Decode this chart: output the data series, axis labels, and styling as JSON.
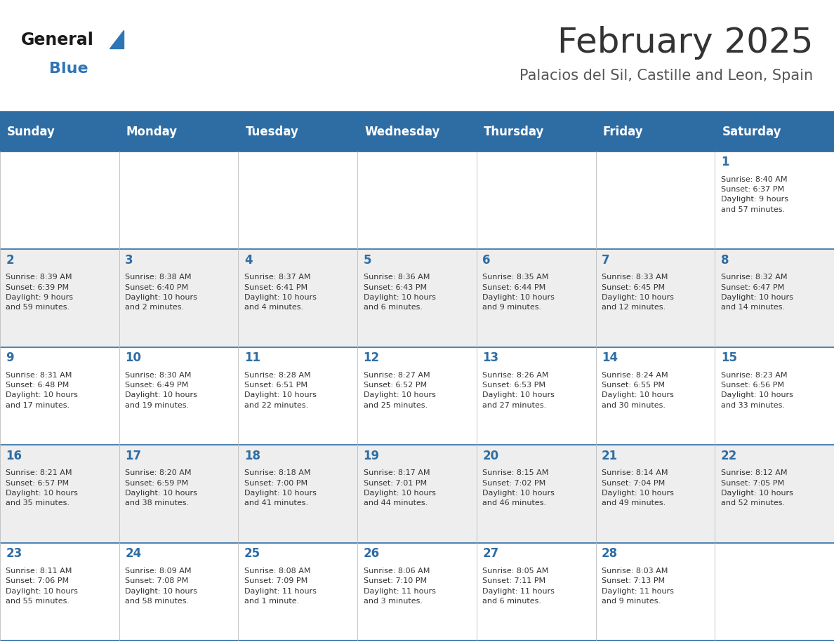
{
  "title": "February 2025",
  "subtitle": "Palacios del Sil, Castille and Leon, Spain",
  "header_color": "#2E6DA4",
  "header_text_color": "#FFFFFF",
  "bg_color": "#FFFFFF",
  "cell_bg_even": "#EEEEEE",
  "cell_bg_odd": "#FFFFFF",
  "day_headers": [
    "Sunday",
    "Monday",
    "Tuesday",
    "Wednesday",
    "Thursday",
    "Friday",
    "Saturday"
  ],
  "title_color": "#333333",
  "subtitle_color": "#555555",
  "day_number_color": "#2E6DA4",
  "info_color": "#333333",
  "logo_general_color": "#1a1a1a",
  "logo_blue_color": "#2E75B6",
  "weeks": [
    [
      {
        "day": "",
        "info": ""
      },
      {
        "day": "",
        "info": ""
      },
      {
        "day": "",
        "info": ""
      },
      {
        "day": "",
        "info": ""
      },
      {
        "day": "",
        "info": ""
      },
      {
        "day": "",
        "info": ""
      },
      {
        "day": "1",
        "info": "Sunrise: 8:40 AM\nSunset: 6:37 PM\nDaylight: 9 hours\nand 57 minutes."
      }
    ],
    [
      {
        "day": "2",
        "info": "Sunrise: 8:39 AM\nSunset: 6:39 PM\nDaylight: 9 hours\nand 59 minutes."
      },
      {
        "day": "3",
        "info": "Sunrise: 8:38 AM\nSunset: 6:40 PM\nDaylight: 10 hours\nand 2 minutes."
      },
      {
        "day": "4",
        "info": "Sunrise: 8:37 AM\nSunset: 6:41 PM\nDaylight: 10 hours\nand 4 minutes."
      },
      {
        "day": "5",
        "info": "Sunrise: 8:36 AM\nSunset: 6:43 PM\nDaylight: 10 hours\nand 6 minutes."
      },
      {
        "day": "6",
        "info": "Sunrise: 8:35 AM\nSunset: 6:44 PM\nDaylight: 10 hours\nand 9 minutes."
      },
      {
        "day": "7",
        "info": "Sunrise: 8:33 AM\nSunset: 6:45 PM\nDaylight: 10 hours\nand 12 minutes."
      },
      {
        "day": "8",
        "info": "Sunrise: 8:32 AM\nSunset: 6:47 PM\nDaylight: 10 hours\nand 14 minutes."
      }
    ],
    [
      {
        "day": "9",
        "info": "Sunrise: 8:31 AM\nSunset: 6:48 PM\nDaylight: 10 hours\nand 17 minutes."
      },
      {
        "day": "10",
        "info": "Sunrise: 8:30 AM\nSunset: 6:49 PM\nDaylight: 10 hours\nand 19 minutes."
      },
      {
        "day": "11",
        "info": "Sunrise: 8:28 AM\nSunset: 6:51 PM\nDaylight: 10 hours\nand 22 minutes."
      },
      {
        "day": "12",
        "info": "Sunrise: 8:27 AM\nSunset: 6:52 PM\nDaylight: 10 hours\nand 25 minutes."
      },
      {
        "day": "13",
        "info": "Sunrise: 8:26 AM\nSunset: 6:53 PM\nDaylight: 10 hours\nand 27 minutes."
      },
      {
        "day": "14",
        "info": "Sunrise: 8:24 AM\nSunset: 6:55 PM\nDaylight: 10 hours\nand 30 minutes."
      },
      {
        "day": "15",
        "info": "Sunrise: 8:23 AM\nSunset: 6:56 PM\nDaylight: 10 hours\nand 33 minutes."
      }
    ],
    [
      {
        "day": "16",
        "info": "Sunrise: 8:21 AM\nSunset: 6:57 PM\nDaylight: 10 hours\nand 35 minutes."
      },
      {
        "day": "17",
        "info": "Sunrise: 8:20 AM\nSunset: 6:59 PM\nDaylight: 10 hours\nand 38 minutes."
      },
      {
        "day": "18",
        "info": "Sunrise: 8:18 AM\nSunset: 7:00 PM\nDaylight: 10 hours\nand 41 minutes."
      },
      {
        "day": "19",
        "info": "Sunrise: 8:17 AM\nSunset: 7:01 PM\nDaylight: 10 hours\nand 44 minutes."
      },
      {
        "day": "20",
        "info": "Sunrise: 8:15 AM\nSunset: 7:02 PM\nDaylight: 10 hours\nand 46 minutes."
      },
      {
        "day": "21",
        "info": "Sunrise: 8:14 AM\nSunset: 7:04 PM\nDaylight: 10 hours\nand 49 minutes."
      },
      {
        "day": "22",
        "info": "Sunrise: 8:12 AM\nSunset: 7:05 PM\nDaylight: 10 hours\nand 52 minutes."
      }
    ],
    [
      {
        "day": "23",
        "info": "Sunrise: 8:11 AM\nSunset: 7:06 PM\nDaylight: 10 hours\nand 55 minutes."
      },
      {
        "day": "24",
        "info": "Sunrise: 8:09 AM\nSunset: 7:08 PM\nDaylight: 10 hours\nand 58 minutes."
      },
      {
        "day": "25",
        "info": "Sunrise: 8:08 AM\nSunset: 7:09 PM\nDaylight: 11 hours\nand 1 minute."
      },
      {
        "day": "26",
        "info": "Sunrise: 8:06 AM\nSunset: 7:10 PM\nDaylight: 11 hours\nand 3 minutes."
      },
      {
        "day": "27",
        "info": "Sunrise: 8:05 AM\nSunset: 7:11 PM\nDaylight: 11 hours\nand 6 minutes."
      },
      {
        "day": "28",
        "info": "Sunrise: 8:03 AM\nSunset: 7:13 PM\nDaylight: 11 hours\nand 9 minutes."
      },
      {
        "day": "",
        "info": ""
      }
    ]
  ]
}
